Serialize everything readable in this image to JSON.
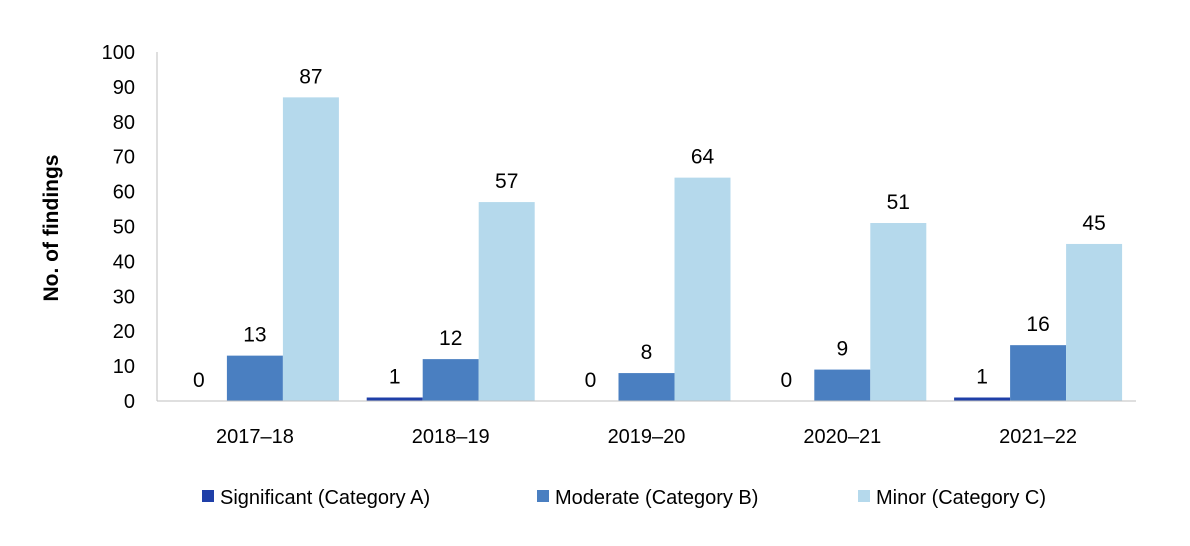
{
  "chart_data": {
    "type": "bar",
    "ylabel": "No. of findings",
    "xlabel": "",
    "ylim": [
      0,
      100
    ],
    "yticks": [
      "0",
      "10",
      "20",
      "30",
      "40",
      "50",
      "60",
      "70",
      "80",
      "90",
      "100"
    ],
    "categories": [
      "2017–18",
      "2018–19",
      "2019–20",
      "2020–21",
      "2021–22"
    ],
    "series": [
      {
        "name": "Significant (Category A)",
        "color": "#1f3fa8",
        "values": [
          0,
          1,
          0,
          0,
          1
        ],
        "labels": [
          "0",
          "1",
          "0",
          "0",
          "1"
        ]
      },
      {
        "name": "Moderate (Category B)",
        "color": "#4a7fc1",
        "values": [
          13,
          12,
          8,
          9,
          16
        ],
        "labels": [
          "13",
          "12",
          "8",
          "9",
          "16"
        ]
      },
      {
        "name": "Minor (Category C)",
        "color": "#b5d9ec",
        "values": [
          87,
          57,
          64,
          51,
          45
        ],
        "labels": [
          "87",
          "57",
          "64",
          "51",
          "45"
        ]
      }
    ],
    "grid": false,
    "legend_position": "bottom"
  }
}
